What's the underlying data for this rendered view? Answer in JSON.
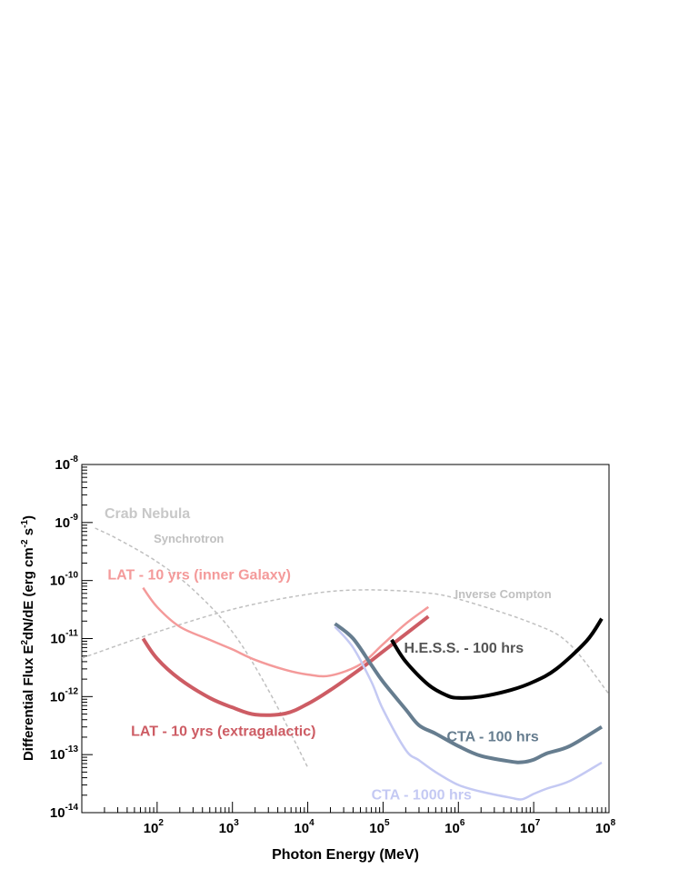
{
  "chart_data": {
    "type": "line",
    "xlabel": "Photon Energy (MeV)",
    "ylabel": {
      "base": "Differential Flux E",
      "sup1": "2",
      "mid": "dN/dE (erg cm",
      "sup2": "-2",
      "mid2": " s",
      "sup3": "-1",
      "end": ")"
    },
    "x_scale": "log",
    "y_scale": "log",
    "xlim": [
      10,
      100000000
    ],
    "ylim": [
      1e-14,
      1e-08
    ],
    "x_ticks": [
      {
        "value": 100,
        "base": "10",
        "exp": "2"
      },
      {
        "value": 1000,
        "base": "10",
        "exp": "3"
      },
      {
        "value": 10000,
        "base": "10",
        "exp": "4"
      },
      {
        "value": 100000,
        "base": "10",
        "exp": "5"
      },
      {
        "value": 1000000,
        "base": "10",
        "exp": "6"
      },
      {
        "value": 10000000,
        "base": "10",
        "exp": "7"
      },
      {
        "value": 100000000,
        "base": "10",
        "exp": "8"
      }
    ],
    "y_ticks": [
      {
        "value": 1e-14,
        "base": "10",
        "exp": "-14"
      },
      {
        "value": 1e-13,
        "base": "10",
        "exp": "-13"
      },
      {
        "value": 1e-12,
        "base": "10",
        "exp": "-12"
      },
      {
        "value": 1e-11,
        "base": "10",
        "exp": "-11"
      },
      {
        "value": 1e-10,
        "base": "10",
        "exp": "-10"
      },
      {
        "value": 1e-09,
        "base": "10",
        "exp": "-9"
      },
      {
        "value": 1e-08,
        "base": "10",
        "exp": "-8"
      }
    ],
    "series": [
      {
        "name": "Synchrotron",
        "color": "#c0c0c0",
        "style": "dashed",
        "x": [
          15,
          30,
          100,
          300,
          1000,
          3000,
          10000
        ],
        "y": [
          8e-10,
          5.2e-10,
          2.1e-10,
          7e-11,
          1.3e-11,
          1.3e-12,
          6e-14
        ]
      },
      {
        "name": "Inverse Compton",
        "color": "#c0c0c0",
        "style": "dashed",
        "x": [
          10,
          100,
          1000,
          10000,
          50000,
          300000,
          1000000,
          10000000,
          30000000,
          100000000
        ],
        "y": [
          4.6e-12,
          1.3e-11,
          3.2e-11,
          5.8e-11,
          6.9e-11,
          6.3e-11,
          4.8e-11,
          1.8e-11,
          8e-12,
          1.1e-12
        ]
      },
      {
        "name": "LAT - 10 yrs (inner Galaxy)",
        "color": "#f49a9a",
        "style": "solid",
        "x": [
          65,
          100,
          200,
          500,
          1000,
          2000,
          5000,
          10000,
          20000,
          50000,
          100000,
          200000,
          400000
        ],
        "y": [
          7.5e-11,
          3.5e-11,
          1.6e-11,
          9.5e-12,
          6.5e-12,
          4.3e-12,
          2.9e-12,
          2.4e-12,
          2.3e-12,
          3.6e-12,
          8e-12,
          1.8e-11,
          3.5e-11
        ]
      },
      {
        "name": "LAT - 10 yrs (extragalactic)",
        "color": "#cd5c64",
        "style": "solid",
        "x": [
          65,
          100,
          200,
          500,
          1000,
          2000,
          5000,
          10000,
          20000,
          50000,
          100000,
          200000,
          400000
        ],
        "y": [
          1e-11,
          4.5e-12,
          2e-12,
          9.5e-13,
          6.5e-13,
          4.9e-13,
          5.1e-13,
          7.5e-13,
          1.3e-12,
          3e-12,
          6e-12,
          1.2e-11,
          2.4e-11
        ]
      },
      {
        "name": "H.E.S.S. - 100 hrs",
        "color": "#000000",
        "style": "solid",
        "x": [
          130000,
          200000,
          400000,
          700000,
          1000000,
          2000000,
          5000000,
          10000000,
          20000000,
          50000000,
          80000000
        ],
        "y": [
          9.5e-12,
          4e-12,
          1.6e-12,
          1.05e-12,
          9.5e-13,
          1e-12,
          1.3e-12,
          1.8e-12,
          3e-12,
          9e-12,
          2.2e-11
        ]
      },
      {
        "name": "CTA - 100 hrs",
        "color": "#667d8f",
        "style": "solid",
        "x": [
          23000,
          40000,
          70000,
          100000,
          200000,
          300000,
          500000,
          1000000,
          2000000,
          5000000,
          7000000,
          10000000,
          15000000,
          30000000,
          80000000
        ],
        "y": [
          1.8e-11,
          1e-11,
          3.5e-12,
          1.8e-12,
          6e-13,
          3.2e-13,
          2.3e-13,
          1.4e-13,
          9.5e-14,
          7.6e-14,
          7.4e-14,
          8.2e-14,
          1.05e-13,
          1.4e-13,
          3e-13
        ]
      },
      {
        "name": "CTA - 1000 hrs",
        "color": "#c4c9f3",
        "style": "solid",
        "x": [
          23000,
          40000,
          70000,
          100000,
          200000,
          300000,
          500000,
          1000000,
          2000000,
          5000000,
          7000000,
          10000000,
          15000000,
          30000000,
          80000000
        ],
        "y": [
          1.6e-11,
          7e-12,
          1.8e-12,
          6e-13,
          1.2e-13,
          8e-14,
          5e-14,
          3e-14,
          2.3e-14,
          1.8e-14,
          1.7e-14,
          2.1e-14,
          2.6e-14,
          3.5e-14,
          7.3e-14
        ]
      }
    ],
    "annotations": [
      {
        "id": "crab",
        "text": "Crab Nebula",
        "color": "#c8c8c8",
        "size": 16,
        "x": 20,
        "y": 1.2e-09
      },
      {
        "id": "sync",
        "text": "Synchrotron",
        "color": "#c0c0c0",
        "size": 13,
        "x": 90,
        "y": 4.5e-10
      },
      {
        "id": "ic",
        "text": "Inverse Compton",
        "color": "#c0c0c0",
        "size": 13,
        "x": 900000,
        "y": 5e-11
      },
      {
        "id": "lat-inner",
        "text": "LAT - 10 yrs (inner Galaxy)",
        "color": "#f49a9a",
        "size": 16,
        "x": 22,
        "y": 1.05e-10
      },
      {
        "id": "lat-extra",
        "text": "LAT - 10 yrs (extragalactic)",
        "color": "#cd5c64",
        "size": 16,
        "x": 45,
        "y": 2.1e-13
      },
      {
        "id": "hess",
        "text": "H.E.S.S. - 100 hrs",
        "color": "#555555",
        "size": 16,
        "x": 190000,
        "y": 5.7e-12
      },
      {
        "id": "cta100",
        "text": "CTA - 100 hrs",
        "color": "#667d8f",
        "size": 16,
        "x": 700000,
        "y": 1.7e-13
      },
      {
        "id": "cta1000",
        "text": "CTA - 1000 hrs",
        "color": "#c4c9f3",
        "size": 16,
        "x": 70000,
        "y": 1.7e-14
      }
    ],
    "grid": false,
    "legend": "none"
  }
}
